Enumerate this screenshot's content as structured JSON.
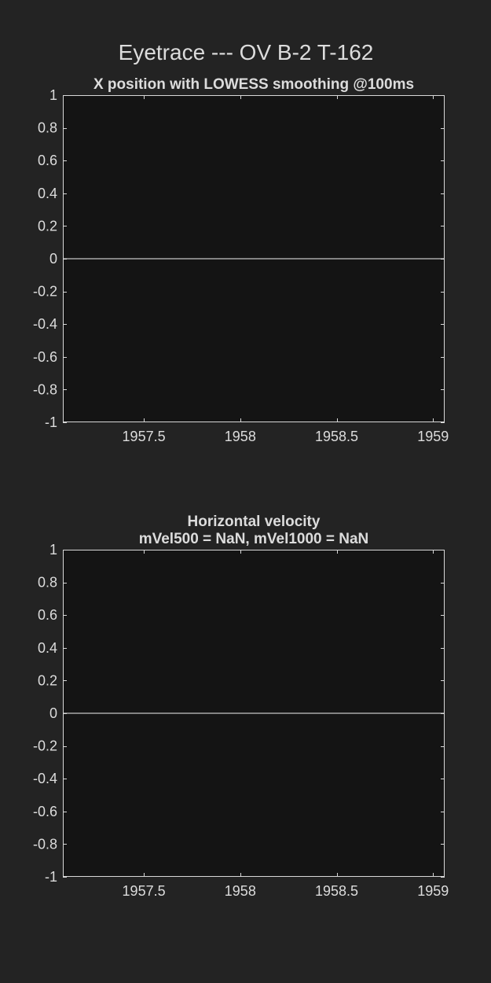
{
  "figure_title": "Eyetrace --- OV B-2 T-162",
  "colors": {
    "figure_background": "#232323",
    "axes_background": "#141414",
    "axes_edge": "#d8d8d8",
    "text": "#dcdcdc",
    "series_line": "#a8a8a8"
  },
  "chart_data": [
    {
      "type": "line",
      "title": "X position with LOWESS smoothing @100ms",
      "title_lines": [
        "X position with LOWESS smoothing @100ms"
      ],
      "xlabel": "",
      "ylabel": "",
      "xlim": [
        1957.08,
        1959.06
      ],
      "ylim": [
        -1,
        1
      ],
      "xticks": [
        1957.5,
        1958,
        1958.5,
        1959
      ],
      "xtick_labels": [
        "1957.5",
        "1958",
        "1958.5",
        "1959"
      ],
      "yticks": [
        1,
        0.8,
        0.6,
        0.4,
        0.2,
        0,
        -0.2,
        -0.4,
        -0.6,
        -0.8,
        -1
      ],
      "ytick_labels": [
        "1",
        "0.8",
        "0.6",
        "0.4",
        "0.2",
        "0",
        "-0.2",
        "-0.4",
        "-0.6",
        "-0.8",
        "-1"
      ],
      "grid": false,
      "legend": "none",
      "series": [
        {
          "x": [
            1957.08,
            1959.06
          ],
          "y": [
            0,
            0
          ]
        }
      ]
    },
    {
      "type": "line",
      "title": "Horizontal velocity\nmVel500 = NaN, mVel1000 = NaN",
      "title_lines": [
        "Horizontal velocity",
        "mVel500 = NaN, mVel1000 = NaN"
      ],
      "xlabel": "",
      "ylabel": "",
      "xlim": [
        1957.08,
        1959.06
      ],
      "ylim": [
        -1,
        1
      ],
      "xticks": [
        1957.5,
        1958,
        1958.5,
        1959
      ],
      "xtick_labels": [
        "1957.5",
        "1958",
        "1958.5",
        "1959"
      ],
      "yticks": [
        1,
        0.8,
        0.6,
        0.4,
        0.2,
        0,
        -0.2,
        -0.4,
        -0.6,
        -0.8,
        -1
      ],
      "ytick_labels": [
        "1",
        "0.8",
        "0.6",
        "0.4",
        "0.2",
        "0",
        "-0.2",
        "-0.4",
        "-0.6",
        "-0.8",
        "-1"
      ],
      "grid": false,
      "legend": "none",
      "series": [
        {
          "x": [
            1957.08,
            1959.06
          ],
          "y": [
            0,
            0
          ]
        }
      ]
    }
  ]
}
